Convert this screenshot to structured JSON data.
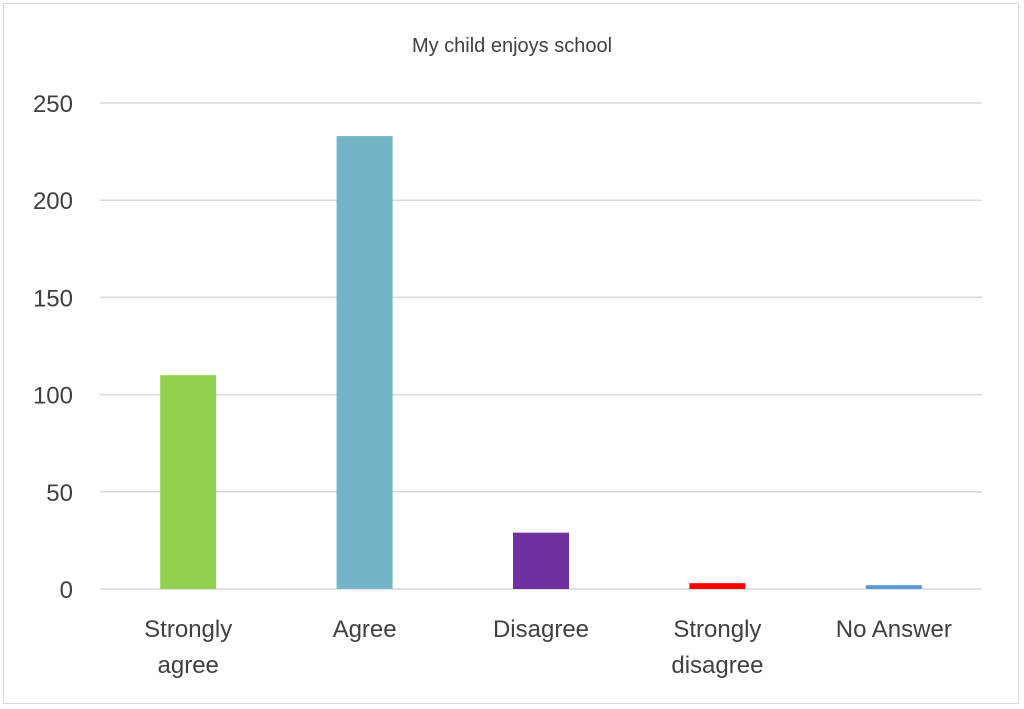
{
  "chart_data": {
    "type": "bar",
    "title": "My child enjoys school",
    "categories": [
      [
        "Strongly",
        "agree"
      ],
      [
        "Agree"
      ],
      [
        "Disagree"
      ],
      [
        "Strongly",
        "disagree"
      ],
      [
        "No Answer"
      ]
    ],
    "values": [
      110,
      233,
      29,
      3,
      2
    ],
    "colors": [
      "#92d050",
      "#73b5c6",
      "#7030a0",
      "#ff0000",
      "#5b9bd5"
    ],
    "xlabel": "",
    "ylabel": "",
    "ylim": [
      0,
      250
    ],
    "yticks": [
      "0",
      "50",
      "100",
      "150",
      "200",
      "250"
    ],
    "grid": true,
    "legend": "none"
  }
}
